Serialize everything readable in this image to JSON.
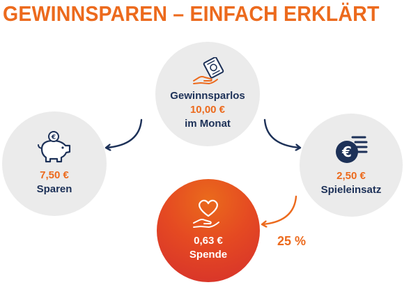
{
  "title": "GEWINNSPAREN – EINFACH ERKLÄRT",
  "colors": {
    "accent": "#ec6a1d",
    "navy": "#1d3158",
    "circle_bg": "#ebebeb",
    "spende_red": "#d52f2c"
  },
  "nodes": {
    "lottery_ticket": {
      "icon": "hand-money-ticket-icon",
      "label": "Gewinnsparlos",
      "amount": "10,00 €",
      "period": "im Monat"
    },
    "savings": {
      "icon": "piggy-bank-icon",
      "amount": "7,50 €",
      "label": "Sparen"
    },
    "stake": {
      "icon": "euro-coins-icon",
      "amount": "2,50 €",
      "label": "Spieleinsatz"
    },
    "donation": {
      "icon": "heart-hand-icon",
      "amount": "0,63 €",
      "label": "Spende"
    }
  },
  "donation_share": "25 %"
}
